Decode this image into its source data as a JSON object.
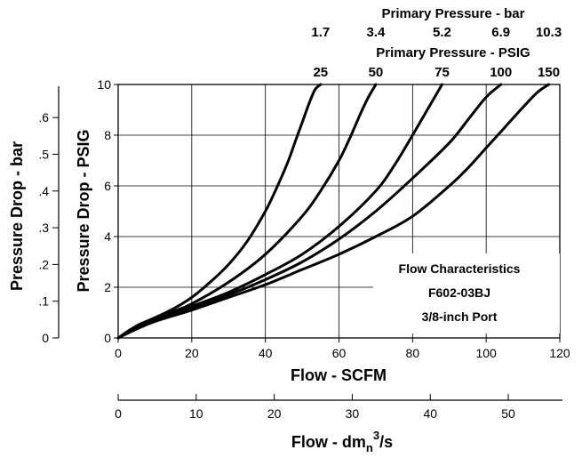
{
  "chart_data": {
    "type": "line",
    "title": "",
    "xlabel": "Flow - SCFM",
    "ylabel": "Pressure Drop - PSIG",
    "xlim": [
      0,
      120
    ],
    "ylim": [
      0,
      10
    ],
    "x_ticks": [
      "0",
      "20",
      "40",
      "60",
      "80",
      "100",
      "120"
    ],
    "y_ticks": [
      "0",
      "2",
      "4",
      "6",
      "8",
      "10"
    ],
    "grid": true,
    "legend_position": "none",
    "secondary_x_axis": {
      "label_prefix": "Flow - dm",
      "label_sub": "n",
      "label_sup": "3",
      "label_suffix": "/s",
      "ticks": [
        "0",
        "10",
        "20",
        "30",
        "40",
        "50"
      ],
      "range": [
        0,
        56.6
      ]
    },
    "secondary_y_axis": {
      "label": "Pressure Drop - bar",
      "ticks": [
        "0",
        ".1",
        ".2",
        ".3",
        ".4",
        ".5",
        ".6"
      ],
      "range": [
        0,
        0.69
      ]
    },
    "top_axis_bar": {
      "label": "Primary Pressure - bar",
      "values": [
        "1.7",
        "3.4",
        "5.2",
        "6.9",
        "10.3"
      ]
    },
    "top_axis_psig": {
      "label": "Primary Pressure - PSIG",
      "values": [
        "25",
        "50",
        "75",
        "100",
        "150"
      ]
    },
    "annotation": [
      "Flow Characteristics",
      "F602-03BJ",
      "3/8-inch Port"
    ],
    "series": [
      {
        "x": [
          0,
          3,
          6,
          10,
          15,
          20,
          25,
          30,
          35,
          40,
          43,
          46,
          48,
          50,
          52,
          53.5,
          55
        ],
        "y": [
          0,
          0.3,
          0.55,
          0.8,
          1.15,
          1.6,
          2.2,
          2.9,
          3.8,
          5.0,
          5.9,
          6.9,
          7.7,
          8.5,
          9.3,
          9.8,
          10
        ]
      },
      {
        "x": [
          0,
          5,
          10,
          15,
          20,
          30,
          40,
          50,
          55,
          60,
          63,
          66,
          68,
          70
        ],
        "y": [
          0,
          0.45,
          0.8,
          1.05,
          1.35,
          2.2,
          3.3,
          4.8,
          5.8,
          7.0,
          7.9,
          8.9,
          9.5,
          10
        ]
      },
      {
        "x": [
          0,
          5,
          10,
          15,
          20,
          30,
          40,
          50,
          60,
          70,
          75,
          80,
          84,
          88
        ],
        "y": [
          0,
          0.45,
          0.75,
          1.0,
          1.25,
          1.8,
          2.5,
          3.3,
          4.4,
          5.8,
          6.8,
          8.0,
          9.0,
          10
        ]
      },
      {
        "x": [
          0,
          5,
          10,
          15,
          20,
          30,
          40,
          50,
          60,
          70,
          80,
          90,
          95,
          100,
          104
        ],
        "y": [
          0,
          0.4,
          0.75,
          0.95,
          1.2,
          1.7,
          2.3,
          3.0,
          3.9,
          5.0,
          6.3,
          7.7,
          8.6,
          9.5,
          10
        ]
      },
      {
        "x": [
          0,
          5,
          10,
          20,
          30,
          40,
          50,
          60,
          70,
          80,
          90,
          95,
          100,
          105,
          110,
          114,
          117
        ],
        "y": [
          0,
          0.35,
          0.65,
          1.1,
          1.6,
          2.1,
          2.7,
          3.3,
          4.0,
          4.8,
          6.0,
          6.7,
          7.5,
          8.3,
          9.1,
          9.7,
          10
        ]
      }
    ]
  }
}
